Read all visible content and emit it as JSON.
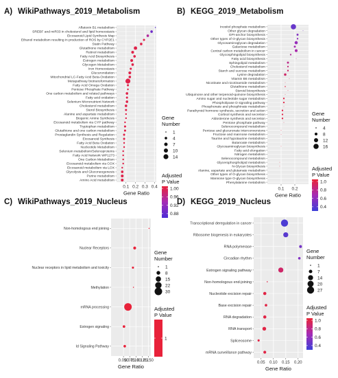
{
  "chart_data": [
    {
      "letter": "A)",
      "title": "WikiPathways_2019_Metabolism",
      "type": "scatter",
      "xlabel": "Gene Ratio",
      "xlim": [
        0,
        0.42
      ],
      "xticks": [
        0.1,
        0.2,
        0.3,
        0.4
      ],
      "xtick_labels": [
        "0.1",
        "0.2",
        "0.3",
        "0.4"
      ],
      "size_legend": {
        "title": [
          "Gene",
          "Number"
        ],
        "values": [
          1,
          4,
          7,
          10,
          14
        ]
      },
      "color_legend": {
        "title": [
          "Adjusted",
          "P Value"
        ],
        "ticks": [
          "1.00",
          "0.96",
          "0.92",
          "0.88"
        ],
        "tick_values": [
          1.0,
          0.96,
          0.92,
          0.88
        ],
        "range": [
          0.86,
          1.01
        ],
        "low_color": "#4b2bd6",
        "high_color": "#e8223a"
      },
      "categories": [
        "Aflatoxin B1 metabolism",
        "SREBF and miR33 in cholesterol and lipid homeostasis",
        "Eicosanoid Lipid Synthesis Map",
        "Ethanol metabolism resulting in production of ROS by CYP2E1",
        "Statin Pathway",
        "Glutathione metabolism",
        "Retinol metabolism",
        "Fatty Acid Biosynthesis",
        "Estrogen metabolism",
        "Glycogen Metabolism",
        "Iron Homeostasis",
        "Glucuronidation",
        "Mitochondrial LC-Fatty Acid Beta-Oxidation",
        "Metapathway biotransformation",
        "Fatty Acid Omega Oxidation",
        "Pentose Phosphate Pathway",
        "One carbon metabolism and related pathways",
        "Fatty acid oxidation",
        "Selenium Micronutrient Network",
        "Cholesterol metabolism",
        "Sterol Biosynthesis",
        "Alanine and aspartate metabolism",
        "Biogenic Amine Synthesis",
        "Eicosanoid metabolism via CYP pathway",
        "Tryptophan metabolism",
        "Glutathione and one carbon metabolism",
        "Prostaglandin Synthesis and Regulation",
        "Eicosanoid Synthesis",
        "Fatty Acid Beta Oxidation",
        "Nucleotide Metabolism",
        "Selenium metabolism/Selenoproteins",
        "Fatty Acid Network WP1273",
        "One Carbon Metabolism",
        "Eicosanoid metabolism via COX",
        "Eicosanoid metabolism via LOX",
        "Glycolysis and Gluconeogenesis",
        "Purine metabolism",
        "Amino Acid metabolism"
      ],
      "x": [
        0.41,
        0.37,
        0.33,
        0.29,
        0.26,
        0.2,
        0.17,
        0.19,
        0.16,
        0.17,
        0.15,
        0.14,
        0.14,
        0.12,
        0.12,
        0.12,
        0.11,
        0.11,
        0.11,
        0.1,
        0.1,
        0.1,
        0.1,
        0.09,
        0.09,
        0.09,
        0.08,
        0.08,
        0.08,
        0.08,
        0.07,
        0.07,
        0.07,
        0.07,
        0.06,
        0.06,
        0.06,
        0.06
      ],
      "size": [
        1,
        4,
        4,
        3,
        4,
        7,
        5,
        4,
        5,
        4,
        3,
        5,
        4,
        14,
        3,
        2,
        4,
        3,
        4,
        4,
        3,
        2,
        2,
        2,
        3,
        3,
        3,
        3,
        2,
        2,
        2,
        2,
        2,
        2,
        2,
        4,
        5,
        5
      ],
      "padj": [
        0.87,
        0.89,
        0.95,
        1.0,
        1.0,
        1.0,
        1.0,
        1.0,
        1.0,
        1.0,
        1.0,
        1.0,
        1.0,
        1.0,
        1.0,
        1.0,
        1.0,
        1.0,
        1.0,
        1.0,
        1.0,
        1.0,
        1.0,
        1.0,
        1.0,
        1.0,
        1.0,
        1.0,
        1.0,
        1.0,
        1.0,
        1.0,
        1.0,
        1.0,
        1.0,
        1.0,
        1.0,
        1.0
      ]
    },
    {
      "letter": "B)",
      "title": "KEGG_2019_Metabolism",
      "type": "scatter",
      "xlabel": "Gene Ratio",
      "xlim": [
        0,
        0.3
      ],
      "xticks": [
        0.1,
        0.2
      ],
      "xtick_labels": [
        "0.1",
        "0.2"
      ],
      "size_legend": {
        "title": [
          "Gene",
          "Number"
        ],
        "values": [
          4,
          8,
          12,
          16
        ]
      },
      "color_legend": {
        "title": [
          "Adjusted",
          "P Value"
        ],
        "ticks": [
          "1.0",
          "0.8",
          "0.6",
          "0.4"
        ],
        "tick_values": [
          1.0,
          0.8,
          0.6,
          0.4
        ],
        "range": [
          0.3,
          1.05
        ],
        "low_color": "#3d3fd8",
        "high_color": "#ea2435"
      },
      "categories": [
        "Inositol phosphate metabolism",
        "Other glycan degradation",
        "GPI-anchor biosynthesis",
        "Other types of O-glycan biosynthesis",
        "Glycosaminoglycan degradation",
        "Galactose metabolism",
        "Central carbon metabolism in cancer",
        "Glycosphingolipid biosynthesis",
        "Fatty acid biosynthesis",
        "Sphingolipid metabolism",
        "Cholesterol metabolism",
        "Starch and sucrose metabolism",
        "Lysine degradation",
        "Vitamin B6 metabolism",
        "Nicotinate and nicotinamide metabolism",
        "Glutathione metabolism",
        "Steroid biosynthesis",
        "Ubiquinone and other terpenoid-quinone biosynthesis",
        "Amino sugar and nucleotide sugar metabolism",
        "Phospholipase D signaling pathway",
        "Phosphonate and phosphinate metabolism",
        "Parathyroid hormone synthesis, secretion and action",
        "Cortisol synthesis and secretion",
        "Aldosterone synthesis and secretion",
        "Pentose phosphate pathway",
        "Selenocompound metabolism",
        "Pentose and glucuronate interconversions",
        "Fructose and mannose metabolism",
        "Taurine and hypotaurine metabolism",
        "Butanoate metabolism",
        "Glycosaminoglycan biosynthesis",
        "Fatty acid elongation",
        "Nitrogen metabolism",
        "Selenocompound metabolism",
        "Glycerophospholipid metabolism",
        "N-Glycan biosynthesis",
        "Alanine, aspartate and glutamate metabolism",
        "Other types of O-glycan biosynthesis",
        "Mannose type O-glycan biosynthesis",
        "Phenylalanine metabolism"
      ],
      "x": [
        0.19,
        0.26,
        0.22,
        0.22,
        0.21,
        0.2,
        0.21,
        0.17,
        0.21,
        0.15,
        0.15,
        0.15,
        0.13,
        0.16,
        0.13,
        0.13,
        0.15,
        0.13,
        0.12,
        0.12,
        0.12,
        0.11,
        0.11,
        0.11,
        0.12,
        0.11,
        0.1,
        0.1,
        0.1,
        0.1,
        0.1,
        0.1,
        0.1,
        0.09,
        0.09,
        0.09,
        0.09,
        0.08,
        0.08,
        0.08
      ],
      "size": [
        16,
        3,
        6,
        5,
        9,
        6,
        8,
        5,
        3,
        6,
        5,
        5,
        7,
        3,
        3,
        4,
        3,
        3,
        5,
        5,
        3,
        5,
        5,
        5,
        3,
        2,
        3,
        3,
        2,
        2,
        3,
        2,
        2,
        2,
        3,
        3,
        2,
        2,
        2,
        2
      ],
      "padj": [
        0.45,
        0.5,
        0.55,
        0.6,
        0.62,
        0.68,
        0.7,
        0.75,
        0.78,
        0.8,
        0.85,
        0.88,
        0.9,
        0.95,
        1.0,
        1.0,
        1.0,
        1.0,
        1.0,
        1.0,
        1.0,
        1.0,
        1.0,
        1.0,
        1.0,
        1.0,
        1.0,
        1.0,
        1.0,
        1.0,
        1.0,
        1.0,
        1.0,
        1.0,
        1.0,
        1.0,
        1.0,
        1.0,
        1.0,
        1.0
      ]
    },
    {
      "letter": "C)",
      "title": "WikiPathways_2019_Nucleus",
      "type": "scatter",
      "xlabel": "Gene Ratio",
      "xlim": [
        0,
        0.16
      ],
      "xticks": [
        0.05,
        0.075,
        0.1,
        0.125,
        0.15
      ],
      "xtick_labels": [
        "0.050",
        "0.075",
        "0.100",
        "0.125",
        "0.150"
      ],
      "size_legend": {
        "title": [
          "Gene",
          "Number"
        ],
        "values": [
          1,
          8,
          15,
          22,
          30
        ]
      },
      "color_legend": {
        "title": [
          "Adjusted",
          "P Value"
        ],
        "ticks": [
          "1"
        ],
        "tick_values": [
          1.0
        ],
        "range": [
          0.9,
          1.1
        ],
        "low_color": "#e8223a",
        "high_color": "#e8223a"
      },
      "categories": [
        "Non-homologous end joining",
        "Nuclear Receptors",
        "Nuclear receptors in lipid metabolism and toxicity",
        "Methylation",
        "mRNA processing",
        "Estrogen signaling",
        "Id Signaling Pathway"
      ],
      "x": [
        0.153,
        0.095,
        0.088,
        0.09,
        0.068,
        0.052,
        0.055
      ],
      "size": [
        1,
        5,
        3,
        1,
        30,
        4,
        4
      ],
      "padj": [
        1,
        1,
        1,
        1,
        1,
        1,
        1
      ]
    },
    {
      "letter": "D)",
      "title": "KEGG_2019_Nucleus",
      "type": "scatter",
      "xlabel": "Gene Ratio",
      "xlim": [
        0.02,
        0.22
      ],
      "xticks": [
        0.05,
        0.1,
        0.15,
        0.2
      ],
      "xtick_labels": [
        "0.05",
        "0.10",
        "0.15",
        "0.20"
      ],
      "size_legend": {
        "title": [
          "Gene",
          "Number"
        ],
        "values": [
          1,
          7,
          14,
          20,
          27
        ]
      },
      "color_legend": {
        "title": [
          "Adjusted",
          "P Value"
        ],
        "ticks": [
          "1.0",
          "0.8",
          "0.6",
          "0.4"
        ],
        "tick_values": [
          1.0,
          0.8,
          0.6,
          0.4
        ],
        "range": [
          0.3,
          1.05
        ],
        "low_color": "#3d3fd8",
        "high_color": "#ea2435"
      },
      "categories": [
        "Transcriptional deregulation in cancer",
        "Ribosome biogenesis in eukaryotes",
        "RNA polymerase",
        "Circadian rhythm",
        "Estrogen signaling pathway",
        "Non-homologous end-joining",
        "Nucleotide excision repair",
        "Base excision repair",
        "RNA degradation",
        "RNA transport",
        "Spliceosome",
        "mRNA surveillance pathway"
      ],
      "x": [
        0.145,
        0.15,
        0.21,
        0.205,
        0.13,
        0.075,
        0.065,
        0.07,
        0.065,
        0.063,
        0.04,
        0.065
      ],
      "size": [
        27,
        14,
        5,
        4,
        14,
        1,
        6,
        4,
        6,
        8,
        3,
        5
      ],
      "padj": [
        0.35,
        0.4,
        0.5,
        0.55,
        0.9,
        1.0,
        1.0,
        1.0,
        1.0,
        1.0,
        1.0,
        1.0
      ]
    }
  ]
}
